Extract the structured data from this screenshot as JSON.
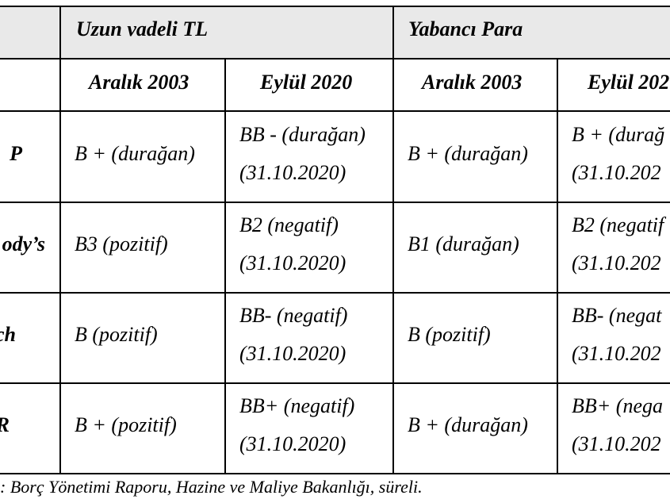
{
  "header": {
    "group_tl": "Uzun vadeli TL",
    "group_fx": "Yabancı Para",
    "col1": "Aralık 2003",
    "col2": "Eylül 2020",
    "col3": "Aralık 2003",
    "col4": "Eylül 202"
  },
  "rows": [
    {
      "agency": "P",
      "tl_2003": "B + (durağan)",
      "tl_2020_a": "BB - (durağan)",
      "tl_2020_b": "(31.10.2020)",
      "fx_2003": "B + (durağan)",
      "fx_2020_a": "B + (durağ",
      "fx_2020_b": "(31.10.202"
    },
    {
      "agency": "ody’s",
      "tl_2003": "B3 (pozitif)",
      "tl_2020_a": "B2 (negatif)",
      "tl_2020_b": "(31.10.2020)",
      "fx_2003": "B1 (durağan)",
      "fx_2020_a": "B2 (negatif",
      "fx_2020_b": "(31.10.202"
    },
    {
      "agency": "ch",
      "tl_2003": "B (pozitif)",
      "tl_2020_a": "BB- (negatif)",
      "tl_2020_b": "(31.10.2020)",
      "fx_2003": "B (pozitif)",
      "fx_2020_a": "BB- (negat",
      "fx_2020_b": "(31.10.202"
    },
    {
      "agency": "R",
      "tl_2003": "B + (pozitif)",
      "tl_2020_a": "BB+ (negatif)",
      "tl_2020_b": "(31.10.2020)",
      "fx_2003": "B + (durağan)",
      "fx_2020_a": "BB+ (nega",
      "fx_2020_b": "(31.10.202"
    }
  ],
  "footnote": ": Borç Yönetimi Raporu, Hazine ve Maliye Bakanlığı, süreli."
}
